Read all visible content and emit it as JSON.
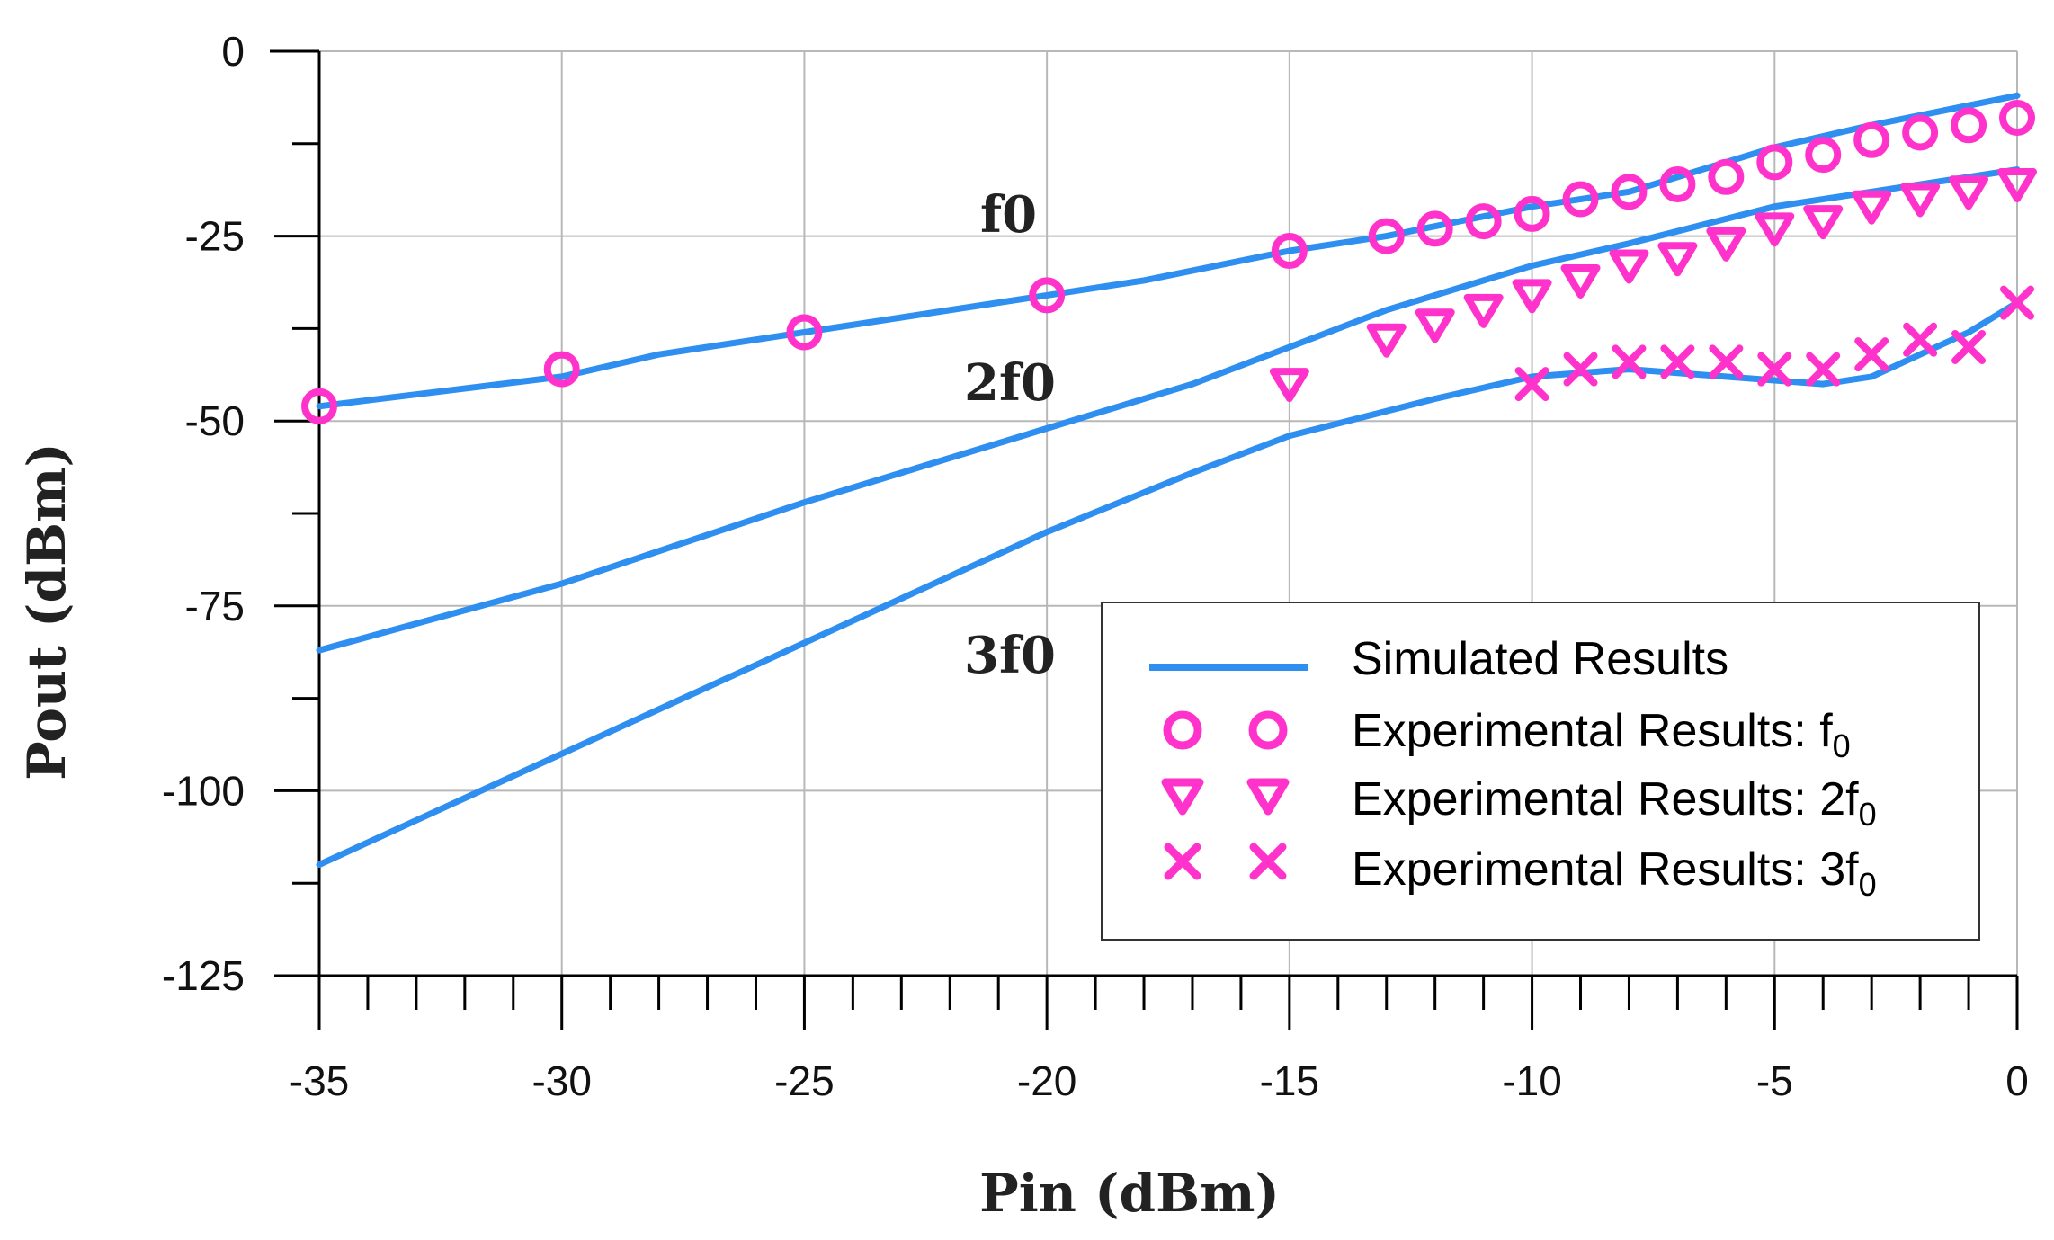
{
  "chart_data": {
    "type": "line",
    "xlabel": "Pin (dBm)",
    "ylabel": "Pout (dBm)",
    "xlim": [
      -35,
      0
    ],
    "ylim": [
      -125,
      0
    ],
    "xticks": [
      -35,
      -30,
      -25,
      -20,
      -15,
      -10,
      -5,
      0
    ],
    "yticks": [
      0,
      -25,
      -50,
      -75,
      -100,
      -125
    ],
    "xtick_labels": [
      "-35",
      "-30",
      "-25",
      "-20",
      "-15",
      "-10",
      "-5",
      "0"
    ],
    "ytick_labels": [
      "0",
      "-25",
      "-50",
      "-75",
      "-100",
      "-125"
    ],
    "grid": true,
    "legend_position": "bottom-right",
    "colors": {
      "simulated": "#2e8ff0",
      "experimental": "#ff33cc"
    },
    "simulated": [
      {
        "name": "f0",
        "label": "f0",
        "x": [
          -35,
          -30,
          -28,
          -25,
          -20,
          -18,
          -15,
          -13,
          -10,
          -8,
          -5,
          -3,
          0
        ],
        "y": [
          -48,
          -44,
          -41,
          -38,
          -33,
          -31,
          -27,
          -25,
          -21,
          -19,
          -13,
          -10,
          -6
        ]
      },
      {
        "name": "2f0",
        "label": "2f0",
        "x": [
          -35,
          -30,
          -25,
          -20,
          -17,
          -15,
          -13,
          -10,
          -8,
          -5,
          -3,
          0
        ],
        "y": [
          -81,
          -72,
          -61,
          -51,
          -45,
          -40,
          -35,
          -29,
          -26,
          -21,
          -19,
          -16
        ]
      },
      {
        "name": "3f0",
        "label": "3f0",
        "x": [
          -35,
          -30,
          -25,
          -20,
          -17,
          -15,
          -12,
          -10,
          -8,
          -6,
          -4,
          -3,
          -1,
          0
        ],
        "y": [
          -110,
          -95,
          -80,
          -65,
          -57,
          -52,
          -47,
          -44,
          -43,
          -44,
          -45,
          -44,
          -38,
          -34
        ]
      }
    ],
    "experimental": [
      {
        "name": "Experimental Results: f0",
        "marker": "circle",
        "x": [
          -35,
          -30,
          -25,
          -20,
          -15,
          -13,
          -12,
          -11,
          -10,
          -9,
          -8,
          -7,
          -6,
          -5,
          -4,
          -3,
          -2,
          -1,
          0
        ],
        "y": [
          -48,
          -43,
          -38,
          -33,
          -27,
          -25,
          -24,
          -23,
          -22,
          -20,
          -19,
          -18,
          -17,
          -15,
          -14,
          -12,
          -11,
          -10,
          -9
        ]
      },
      {
        "name": "Experimental Results: 2f0",
        "marker": "triangle-down",
        "x": [
          -15,
          -13,
          -12,
          -11,
          -10,
          -9,
          -8,
          -7,
          -6,
          -5,
          -4,
          -3,
          -2,
          -1,
          0
        ],
        "y": [
          -45,
          -39,
          -37,
          -35,
          -33,
          -31,
          -29,
          -28,
          -26,
          -24,
          -23,
          -21,
          -20,
          -19,
          -18
        ]
      },
      {
        "name": "Experimental Results: 3f0",
        "marker": "x",
        "x": [
          -10,
          -9,
          -8,
          -7,
          -6,
          -5,
          -4,
          -3,
          -2,
          -1,
          0
        ],
        "y": [
          -45,
          -43,
          -42,
          -42,
          -42,
          -43,
          -43,
          -41,
          -39,
          -40,
          -34
        ]
      }
    ],
    "legend": {
      "simulated": "Simulated Results",
      "f0_main": "Experimental Results: f",
      "f0_sub": "0",
      "f2_main": "Experimental Results: 2f",
      "f2_sub": "0",
      "f3_main": "Experimental Results: 3f",
      "f3_sub": "0"
    }
  }
}
